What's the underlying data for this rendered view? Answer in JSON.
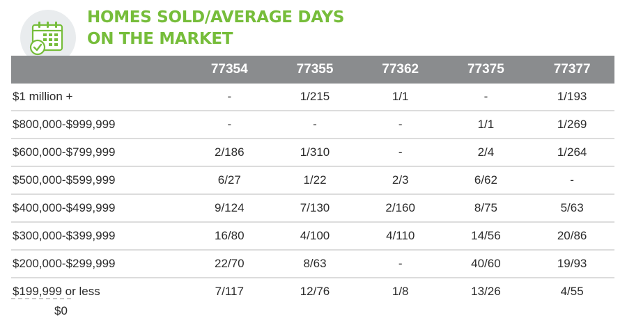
{
  "title": {
    "line1": "HOMES SOLD/AVERAGE DAYS",
    "line2": "ON THE MARKET"
  },
  "icon": "calendar-check-icon",
  "colors": {
    "title_green": "#76bd3a",
    "header_gray": "#8a8c8e",
    "row_line": "#dcdcdc"
  },
  "table": {
    "headers": [
      "",
      "77354",
      "77355",
      "77362",
      "77375",
      "77377"
    ],
    "rows": [
      [
        "$1 million +",
        "-",
        "1/215",
        "1/1",
        "-",
        "1/193"
      ],
      [
        "$800,000-$999,999",
        "-",
        "-",
        "-",
        "1/1",
        "1/269"
      ],
      [
        "$600,000-$799,999",
        "2/186",
        "1/310",
        "-",
        "2/4",
        "1/264"
      ],
      [
        "$500,000-$599,999",
        "6/27",
        "1/22",
        "2/3",
        "6/62",
        "-"
      ],
      [
        "$400,000-$499,999",
        "9/124",
        "7/130",
        "2/160",
        "8/75",
        "5/63"
      ],
      [
        "$300,000-$399,999",
        "16/80",
        "4/100",
        "4/110",
        "14/56",
        "20/86"
      ],
      [
        "$200,000-$299,999",
        "22/70",
        "8/63",
        "-",
        "40/60",
        "19/93"
      ],
      [
        "$199,999 or less",
        "7/117",
        "12/76",
        "1/8",
        "13/26",
        "4/55"
      ]
    ]
  },
  "footer_value": "$0"
}
